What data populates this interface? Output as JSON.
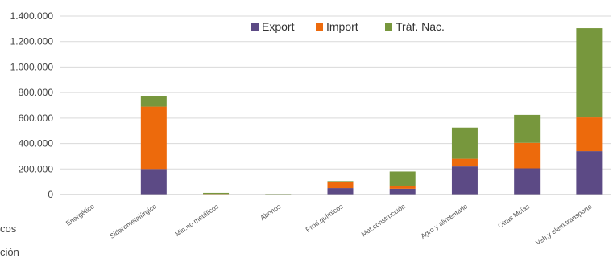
{
  "chart_data": {
    "type": "bar",
    "stacked": true,
    "categories": [
      "Energético",
      "Siderometalúrgico",
      "Min.no metálicos",
      "Abonos",
      "Prod.químicos",
      "Mat.construcción",
      "Agro y alimentario",
      "Otras Mcías",
      "Veh.y elem.transporte"
    ],
    "series": [
      {
        "name": "Export",
        "color": "#5c4a85",
        "values": [
          0,
          200000,
          3000,
          1000,
          50000,
          45000,
          220000,
          205000,
          340000
        ]
      },
      {
        "name": "Import",
        "color": "#ed6a0c",
        "values": [
          0,
          490000,
          2000,
          1000,
          45000,
          20000,
          60000,
          200000,
          265000
        ]
      },
      {
        "name": "Tráf. Nac.",
        "color": "#77973d",
        "values": [
          0,
          80000,
          8000,
          3000,
          10000,
          115000,
          245000,
          220000,
          700000
        ]
      }
    ],
    "ylim": [
      0,
      1400000
    ],
    "yticks": [
      0,
      200000,
      400000,
      600000,
      800000,
      1000000,
      1200000,
      1400000
    ],
    "ytick_labels": [
      "0",
      "200.000",
      "400.000",
      "600.000",
      "800.000",
      "1.000.000",
      "1.200.000",
      "1.400.000"
    ],
    "grid": true,
    "legend": "top-center"
  },
  "clipped_texts": [
    "cos",
    "ción"
  ]
}
